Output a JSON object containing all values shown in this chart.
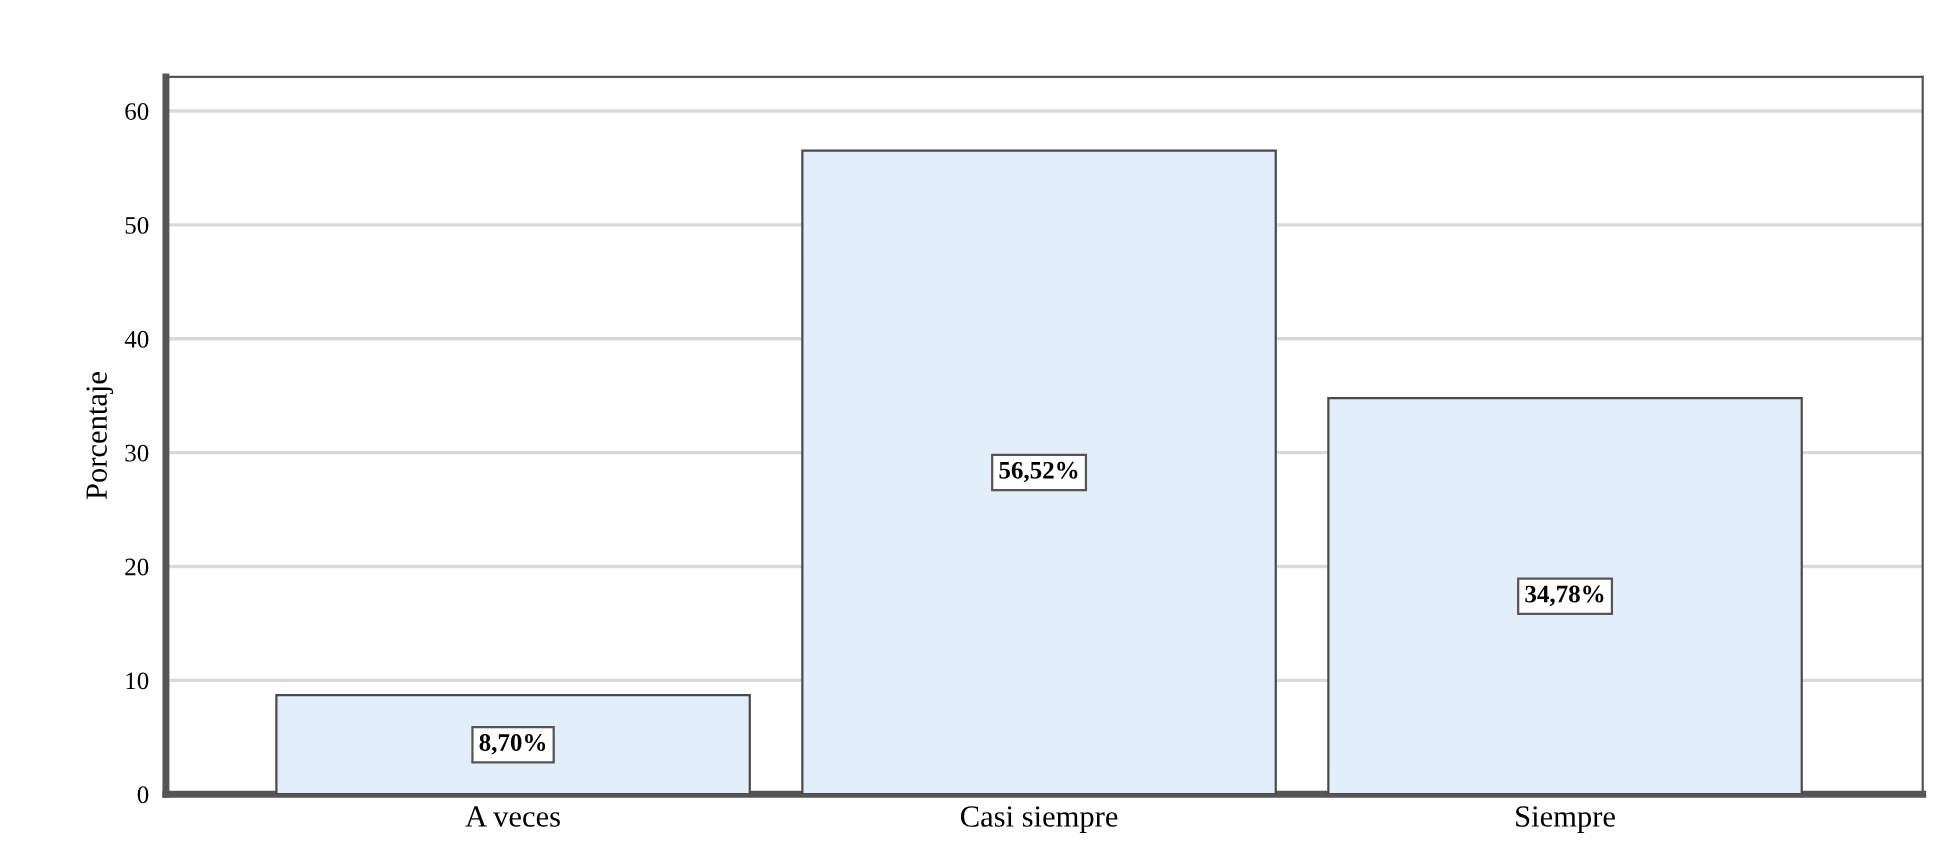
{
  "chart_data": {
    "type": "bar",
    "ylabel": "Porcentaje",
    "categories": [
      "A veces",
      "Casi siempre",
      "Siempre"
    ],
    "values": [
      8.7,
      56.52,
      34.78
    ],
    "color": "#e2eefa",
    "value_labels": [
      "8,70%",
      "56,52%",
      "34,78%"
    ],
    "ylim": [
      0,
      63
    ],
    "yticks": [
      0,
      10,
      20,
      30,
      40,
      50,
      60
    ],
    "grid": "y",
    "legend": false
  }
}
